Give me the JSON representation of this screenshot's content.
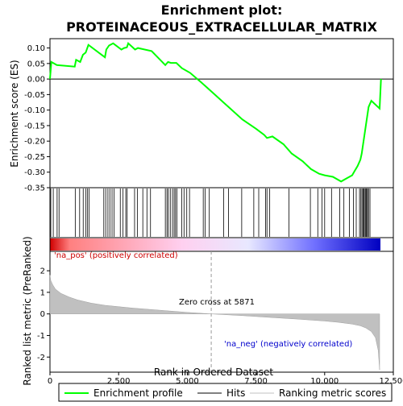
{
  "chart_data": {
    "type": "line",
    "title_line1": "Enrichment plot:",
    "title_line2": "PROTEINACEOUS_EXTRACELLULAR_MATRIX",
    "top_panel": {
      "ylabel": "Enrichment score (ES)",
      "ylim": [
        -0.35,
        0.13
      ],
      "yticks": [
        "0.10",
        "0.05",
        "0.00",
        "-0.05",
        "-0.10",
        "-0.15",
        "-0.20",
        "-0.25",
        "-0.30",
        "-0.35"
      ],
      "ytick_values": [
        0.1,
        0.05,
        0.0,
        -0.05,
        -0.1,
        -0.15,
        -0.2,
        -0.25,
        -0.3,
        -0.35
      ],
      "series": [
        {
          "name": "Enrichment profile",
          "color": "#00ff00",
          "x": [
            0,
            50,
            250,
            900,
            950,
            1100,
            1200,
            1300,
            1400,
            2000,
            2050,
            2150,
            2300,
            2600,
            2700,
            2800,
            2850,
            3100,
            3200,
            3700,
            4200,
            4300,
            4400,
            4600,
            4800,
            5100,
            5500,
            6000,
            6500,
            7000,
            7500,
            7800,
            7900,
            8100,
            8500,
            8800,
            9200,
            9500,
            9800,
            10000,
            10300,
            10600,
            10800,
            11000,
            11100,
            11200,
            11300,
            11350,
            11400,
            11450,
            11500,
            11550,
            11600,
            11700,
            12000,
            12050
          ],
          "y": [
            0.0,
            0.055,
            0.045,
            0.04,
            0.062,
            0.055,
            0.078,
            0.085,
            0.11,
            0.07,
            0.095,
            0.108,
            0.115,
            0.095,
            0.1,
            0.102,
            0.115,
            0.095,
            0.1,
            0.09,
            0.045,
            0.055,
            0.052,
            0.052,
            0.035,
            0.02,
            -0.01,
            -0.05,
            -0.09,
            -0.13,
            -0.16,
            -0.18,
            -0.19,
            -0.185,
            -0.21,
            -0.24,
            -0.265,
            -0.29,
            -0.305,
            -0.31,
            -0.315,
            -0.33,
            -0.32,
            -0.31,
            -0.295,
            -0.28,
            -0.26,
            -0.24,
            -0.21,
            -0.18,
            -0.15,
            -0.12,
            -0.09,
            -0.07,
            -0.095,
            0.0
          ]
        }
      ]
    },
    "hits_panel": {
      "label": "Hits",
      "hit_positions": [
        30,
        120,
        260,
        330,
        920,
        1080,
        1210,
        1300,
        1360,
        1420,
        1960,
        2030,
        2110,
        2180,
        2260,
        2330,
        2560,
        2660,
        2760,
        2810,
        3080,
        3180,
        3380,
        3530,
        3660,
        4200,
        4260,
        4310,
        4380,
        4460,
        4520,
        4570,
        4620,
        4800,
        4880,
        4980,
        5080,
        5580,
        5650,
        5800,
        6320,
        6500,
        6980,
        7420,
        7600,
        7850,
        7900,
        8000,
        8700,
        9480,
        9750,
        9900,
        10000,
        10250,
        10550,
        10700,
        10900,
        11050,
        11150,
        11270,
        11320,
        11360,
        11400,
        11430,
        11470,
        11500,
        11530,
        11560,
        11600,
        11650
      ]
    },
    "rank_panel": {
      "ylabel": "Ranked list metric (PreRanked)",
      "ylim": [
        -2.7,
        2.9
      ],
      "yticks": [
        "2",
        "1",
        "0",
        "-1",
        "-2"
      ],
      "ytick_values": [
        2,
        1,
        0,
        -1,
        -2
      ],
      "zero_cross": 5871,
      "zero_cross_label": "Zero cross at 5871",
      "pos_label": "'na_pos' (positively correlated)",
      "neg_label": "'na_neg' (negatively correlated)",
      "series": [
        {
          "name": "Ranking metric scores",
          "color": "#c0c0c0",
          "x": [
            0,
            30,
            100,
            200,
            400,
            700,
            1000,
            1500,
            2000,
            3000,
            4000,
            5000,
            5871,
            7000,
            8000,
            9000,
            10000,
            10500,
            11000,
            11300,
            11500,
            11700,
            11850,
            11950,
            12000
          ],
          "y": [
            1.8,
            1.55,
            1.35,
            1.15,
            0.95,
            0.78,
            0.65,
            0.5,
            0.4,
            0.27,
            0.17,
            0.07,
            0.0,
            -0.08,
            -0.16,
            -0.24,
            -0.33,
            -0.39,
            -0.47,
            -0.55,
            -0.65,
            -0.82,
            -1.1,
            -1.7,
            -2.6
          ]
        }
      ]
    },
    "xlabel": "Rank in Ordered Dataset",
    "xlim": [
      0,
      12500
    ],
    "xticks": [
      "0",
      "2,500",
      "5,000",
      "7,500",
      "10,000",
      "12,500"
    ],
    "xtick_values": [
      0,
      2500,
      5000,
      7500,
      10000,
      12500
    ],
    "gradient_colors": [
      "#d00000",
      "#ff8080",
      "#ffd0f0",
      "#e8e8ff",
      "#7070ff",
      "#0000c0"
    ],
    "legend": [
      {
        "label": "Enrichment profile",
        "color": "#00ff00"
      },
      {
        "label": "Hits",
        "color": "#000000"
      },
      {
        "label": "Ranking metric scores",
        "color": "#c0c0c0"
      }
    ]
  }
}
